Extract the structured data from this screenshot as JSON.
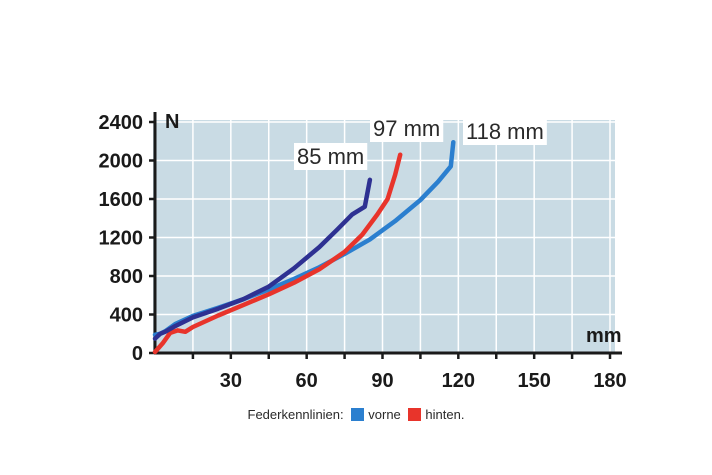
{
  "chart_data": {
    "type": "line",
    "xlabel": "mm",
    "ylabel": "N",
    "xlim": [
      0,
      180
    ],
    "ylim": [
      0,
      2400
    ],
    "xticks": [
      "30",
      "60",
      "90",
      "120",
      "150",
      "180"
    ],
    "yticks": [
      "0",
      "400",
      "800",
      "1200",
      "1600",
      "2000",
      "2400"
    ],
    "grid": true,
    "series": [
      {
        "name": "vorne",
        "color": "#2b7fcf",
        "annotation": "118 mm",
        "x": [
          0,
          2,
          4,
          8,
          15,
          25,
          35,
          45,
          55,
          65,
          75,
          85,
          95,
          105,
          112,
          117,
          118
        ],
        "y": [
          190,
          200,
          225,
          300,
          385,
          470,
          560,
          660,
          770,
          890,
          1030,
          1180,
          1370,
          1590,
          1780,
          1940,
          2190
        ]
      },
      {
        "name": "hinten",
        "color": "#e8342b",
        "annotation": "97 mm",
        "x": [
          0,
          3,
          6,
          9,
          12,
          15,
          25,
          35,
          45,
          55,
          65,
          75,
          82,
          88,
          92,
          95,
          97
        ],
        "y": [
          10,
          100,
          210,
          235,
          220,
          270,
          390,
          500,
          610,
          730,
          870,
          1050,
          1230,
          1440,
          1600,
          1850,
          2060
        ]
      },
      {
        "name": "",
        "color": "#2e3192",
        "annotation": "85 mm",
        "x": [
          0,
          2,
          4,
          8,
          15,
          25,
          35,
          45,
          55,
          65,
          72,
          78,
          83,
          85
        ],
        "y": [
          150,
          200,
          220,
          280,
          370,
          460,
          560,
          690,
          880,
          1100,
          1280,
          1440,
          1520,
          1800
        ]
      }
    ]
  },
  "legend": {
    "label": "Federkennlinien:",
    "items": [
      {
        "label": "vorne",
        "color": "#2b7fcf"
      },
      {
        "label": "hinten.",
        "color": "#e8342b"
      }
    ]
  }
}
